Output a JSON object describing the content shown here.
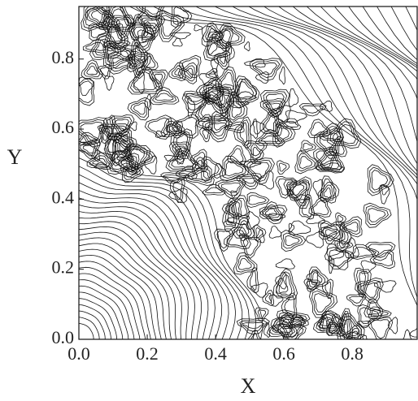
{
  "chart_data": {
    "type": "contour",
    "x_label": "X",
    "y_label": "Y",
    "xlim": [
      0,
      0.99
    ],
    "ylim": [
      0,
      0.95
    ],
    "xticks": [
      {
        "value": 0,
        "label": "0.0"
      },
      0.2,
      0.4,
      0.6,
      0.8
    ],
    "yticks": [
      {
        "value": 0,
        "label": "0.0"
      },
      0.2,
      0.4,
      0.6,
      0.8
    ],
    "color": "#111111"
  }
}
